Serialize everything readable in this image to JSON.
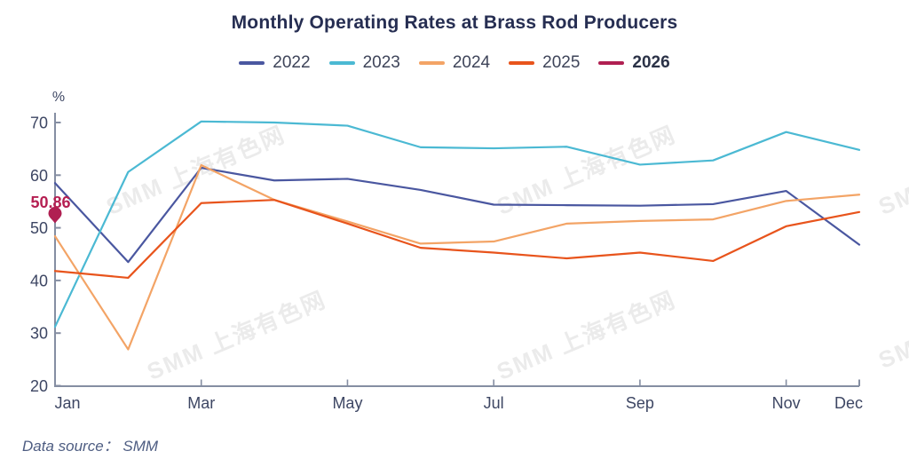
{
  "header": {
    "title": "Monthly Operating Rates at Brass Rod Producers"
  },
  "chart_data": {
    "type": "line",
    "title": "Monthly Operating Rates at Brass Rod Producers",
    "y_unit": "%",
    "ylim": [
      20,
      70
    ],
    "y_ticks": [
      70,
      60,
      50,
      40,
      30,
      20
    ],
    "grid": false,
    "legend_position": "top",
    "categories": [
      "Jan",
      "Feb",
      "Mar",
      "Apr",
      "May",
      "Jun",
      "Jul",
      "Aug",
      "Sep",
      "Oct",
      "Nov",
      "Dec"
    ],
    "x_tick_labels": [
      "Jan",
      "Mar",
      "May",
      "Jul",
      "Sep",
      "Nov",
      "Dec"
    ],
    "series": [
      {
        "name": "2022",
        "color": "#4a57a0",
        "values": [
          58.5,
          43.5,
          61.4,
          59.0,
          59.3,
          57.2,
          54.4,
          54.3,
          54.2,
          54.5,
          57.0,
          46.8
        ]
      },
      {
        "name": "2023",
        "color": "#4bb9d3",
        "values": [
          31.2,
          60.6,
          70.2,
          70.0,
          69.4,
          65.3,
          65.1,
          65.4,
          62.0,
          62.8,
          68.2,
          64.8
        ]
      },
      {
        "name": "2024",
        "color": "#f3a466",
        "values": [
          48.4,
          26.9,
          61.9,
          55.3,
          51.2,
          47.0,
          47.4,
          50.8,
          51.3,
          51.6,
          55.1,
          56.3
        ]
      },
      {
        "name": "2025",
        "color": "#e8541c",
        "values": [
          41.8,
          40.5,
          54.7,
          55.3,
          50.8,
          46.2,
          45.3,
          44.2,
          45.3,
          43.7,
          50.3,
          53.0
        ]
      },
      {
        "name": "2026",
        "color": "#b02052",
        "values": [
          50.86
        ],
        "marker": "pin",
        "legend_bold": true
      }
    ],
    "annotation": {
      "series": "2026",
      "month": "Jan",
      "value": 50.86,
      "label": "50.86"
    },
    "watermark": "SMM 上海有色网"
  },
  "footer": {
    "data_source": "Data source：  SMM"
  }
}
